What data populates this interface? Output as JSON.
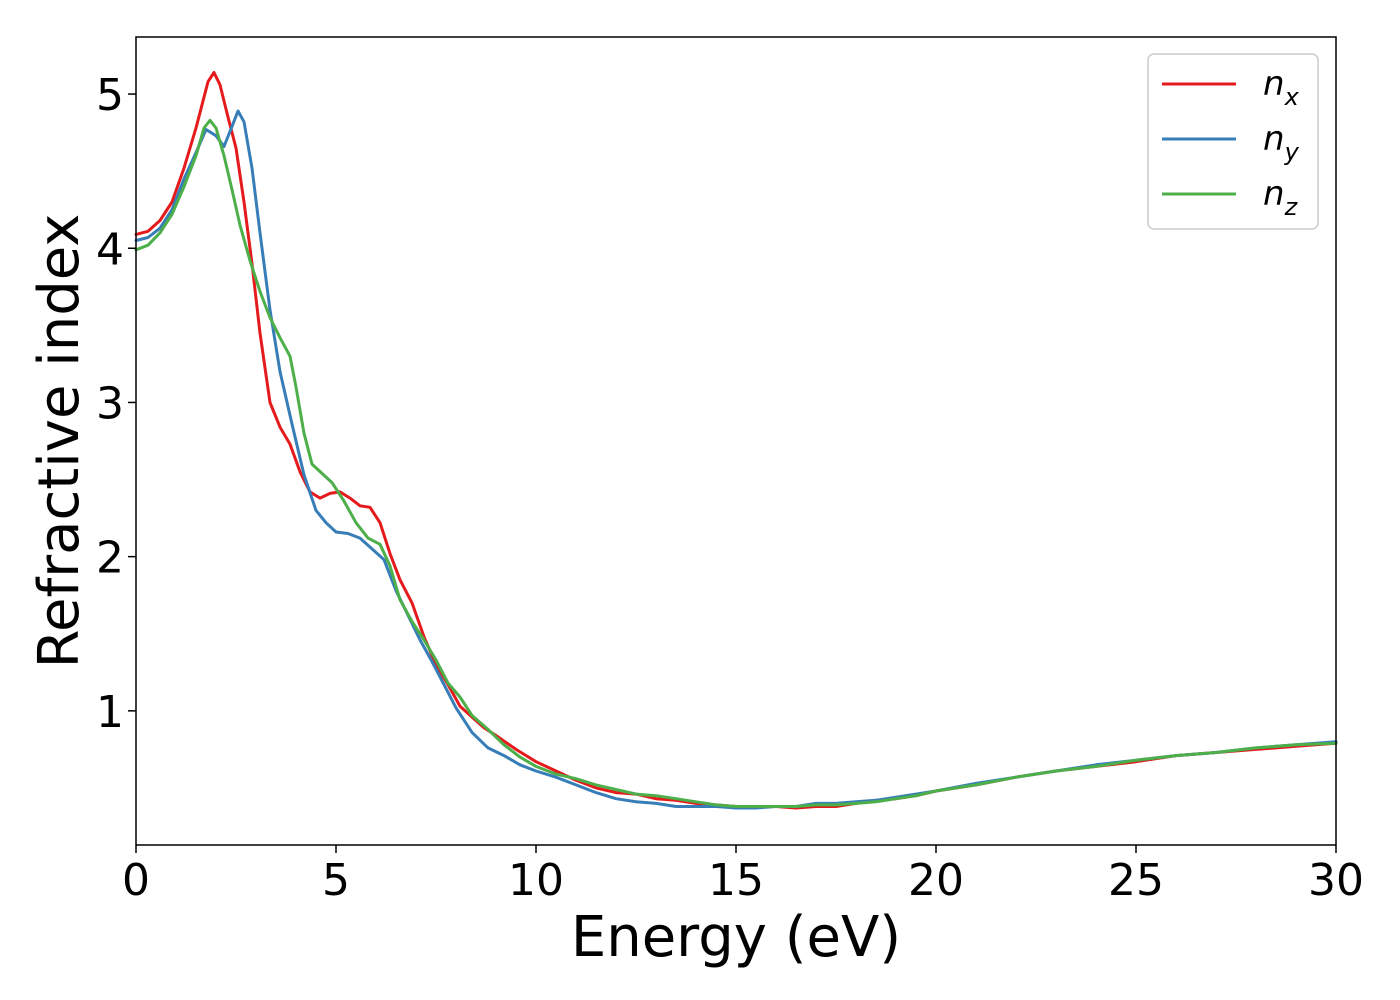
{
  "chart_data": {
    "type": "line",
    "title": "",
    "xlabel": "Energy (eV)",
    "ylabel": "Refractive index",
    "xlim": [
      0,
      30
    ],
    "ylim": [
      0.13,
      5.37
    ],
    "xticks": [
      0,
      5,
      10,
      15,
      20,
      25,
      30
    ],
    "yticks": [
      1,
      2,
      3,
      4,
      5
    ],
    "grid": false,
    "legend_position": "top-right",
    "series": [
      {
        "name": "n",
        "subscript": "x",
        "color": "#e41a1c",
        "points": [
          [
            0,
            4.09
          ],
          [
            0.3,
            4.11
          ],
          [
            0.6,
            4.18
          ],
          [
            0.9,
            4.3
          ],
          [
            1.2,
            4.52
          ],
          [
            1.5,
            4.78
          ],
          [
            1.8,
            5.08
          ],
          [
            1.95,
            5.14
          ],
          [
            2.1,
            5.06
          ],
          [
            2.3,
            4.85
          ],
          [
            2.5,
            4.65
          ],
          [
            2.7,
            4.3
          ],
          [
            2.9,
            3.9
          ],
          [
            3.1,
            3.45
          ],
          [
            3.35,
            3.0
          ],
          [
            3.6,
            2.84
          ],
          [
            3.85,
            2.73
          ],
          [
            4.1,
            2.55
          ],
          [
            4.35,
            2.42
          ],
          [
            4.6,
            2.38
          ],
          [
            4.85,
            2.41
          ],
          [
            5.1,
            2.42
          ],
          [
            5.35,
            2.38
          ],
          [
            5.6,
            2.33
          ],
          [
            5.85,
            2.32
          ],
          [
            6.1,
            2.22
          ],
          [
            6.35,
            2.02
          ],
          [
            6.6,
            1.85
          ],
          [
            6.9,
            1.7
          ],
          [
            7.2,
            1.48
          ],
          [
            7.5,
            1.3
          ],
          [
            7.8,
            1.17
          ],
          [
            8.1,
            1.03
          ],
          [
            8.4,
            0.96
          ],
          [
            8.7,
            0.89
          ],
          [
            9.0,
            0.84
          ],
          [
            9.5,
            0.75
          ],
          [
            10.0,
            0.67
          ],
          [
            10.5,
            0.61
          ],
          [
            11.0,
            0.55
          ],
          [
            11.5,
            0.5
          ],
          [
            12.0,
            0.47
          ],
          [
            12.5,
            0.46
          ],
          [
            13.0,
            0.43
          ],
          [
            13.5,
            0.42
          ],
          [
            14.0,
            0.4
          ],
          [
            14.5,
            0.39
          ],
          [
            15.0,
            0.38
          ],
          [
            15.5,
            0.38
          ],
          [
            16.0,
            0.38
          ],
          [
            16.5,
            0.37
          ],
          [
            17.0,
            0.38
          ],
          [
            17.5,
            0.38
          ],
          [
            18.0,
            0.4
          ],
          [
            18.5,
            0.42
          ],
          [
            19.0,
            0.43
          ],
          [
            19.5,
            0.45
          ],
          [
            20.0,
            0.48
          ],
          [
            21.0,
            0.52
          ],
          [
            22.0,
            0.57
          ],
          [
            23.0,
            0.61
          ],
          [
            24.0,
            0.64
          ],
          [
            25.0,
            0.67
          ],
          [
            26.0,
            0.71
          ],
          [
            27.0,
            0.73
          ],
          [
            28.0,
            0.75
          ],
          [
            29.0,
            0.77
          ],
          [
            30.0,
            0.79
          ]
        ]
      },
      {
        "name": "n",
        "subscript": "y",
        "color": "#377eb8",
        "points": [
          [
            0,
            4.05
          ],
          [
            0.3,
            4.07
          ],
          [
            0.6,
            4.13
          ],
          [
            0.9,
            4.25
          ],
          [
            1.2,
            4.45
          ],
          [
            1.5,
            4.62
          ],
          [
            1.75,
            4.77
          ],
          [
            2.0,
            4.73
          ],
          [
            2.2,
            4.66
          ],
          [
            2.4,
            4.79
          ],
          [
            2.55,
            4.89
          ],
          [
            2.7,
            4.82
          ],
          [
            2.9,
            4.52
          ],
          [
            3.1,
            4.1
          ],
          [
            3.35,
            3.6
          ],
          [
            3.6,
            3.2
          ],
          [
            3.9,
            2.86
          ],
          [
            4.2,
            2.53
          ],
          [
            4.5,
            2.3
          ],
          [
            4.75,
            2.22
          ],
          [
            5.0,
            2.16
          ],
          [
            5.3,
            2.15
          ],
          [
            5.6,
            2.12
          ],
          [
            5.9,
            2.05
          ],
          [
            6.2,
            1.98
          ],
          [
            6.5,
            1.78
          ],
          [
            6.8,
            1.62
          ],
          [
            7.1,
            1.46
          ],
          [
            7.4,
            1.32
          ],
          [
            7.7,
            1.17
          ],
          [
            8.0,
            1.02
          ],
          [
            8.4,
            0.86
          ],
          [
            8.8,
            0.76
          ],
          [
            9.2,
            0.71
          ],
          [
            9.6,
            0.65
          ],
          [
            10.0,
            0.61
          ],
          [
            10.5,
            0.57
          ],
          [
            11.0,
            0.52
          ],
          [
            11.5,
            0.47
          ],
          [
            12.0,
            0.43
          ],
          [
            12.5,
            0.41
          ],
          [
            13.0,
            0.4
          ],
          [
            13.5,
            0.38
          ],
          [
            14.0,
            0.38
          ],
          [
            14.5,
            0.38
          ],
          [
            15.0,
            0.37
          ],
          [
            15.5,
            0.37
          ],
          [
            16.0,
            0.38
          ],
          [
            16.5,
            0.38
          ],
          [
            17.0,
            0.4
          ],
          [
            17.5,
            0.4
          ],
          [
            18.0,
            0.41
          ],
          [
            18.5,
            0.42
          ],
          [
            19.0,
            0.44
          ],
          [
            19.5,
            0.46
          ],
          [
            20.0,
            0.48
          ],
          [
            21.0,
            0.53
          ],
          [
            22.0,
            0.57
          ],
          [
            23.0,
            0.61
          ],
          [
            24.0,
            0.65
          ],
          [
            25.0,
            0.68
          ],
          [
            26.0,
            0.71
          ],
          [
            27.0,
            0.73
          ],
          [
            28.0,
            0.76
          ],
          [
            29.0,
            0.78
          ],
          [
            30.0,
            0.8
          ]
        ]
      },
      {
        "name": "n",
        "subscript": "z",
        "color": "#4daf4a",
        "points": [
          [
            0,
            3.99
          ],
          [
            0.3,
            4.02
          ],
          [
            0.6,
            4.1
          ],
          [
            0.9,
            4.22
          ],
          [
            1.2,
            4.4
          ],
          [
            1.5,
            4.6
          ],
          [
            1.7,
            4.78
          ],
          [
            1.85,
            4.83
          ],
          [
            2.0,
            4.78
          ],
          [
            2.2,
            4.6
          ],
          [
            2.4,
            4.38
          ],
          [
            2.6,
            4.15
          ],
          [
            2.85,
            3.92
          ],
          [
            3.1,
            3.72
          ],
          [
            3.35,
            3.55
          ],
          [
            3.6,
            3.42
          ],
          [
            3.85,
            3.3
          ],
          [
            4.0,
            3.1
          ],
          [
            4.2,
            2.8
          ],
          [
            4.4,
            2.6
          ],
          [
            4.65,
            2.54
          ],
          [
            4.9,
            2.48
          ],
          [
            5.2,
            2.36
          ],
          [
            5.5,
            2.22
          ],
          [
            5.8,
            2.12
          ],
          [
            6.1,
            2.08
          ],
          [
            6.35,
            1.94
          ],
          [
            6.6,
            1.72
          ],
          [
            6.9,
            1.58
          ],
          [
            7.2,
            1.46
          ],
          [
            7.5,
            1.33
          ],
          [
            7.8,
            1.18
          ],
          [
            8.1,
            1.09
          ],
          [
            8.4,
            0.97
          ],
          [
            8.8,
            0.88
          ],
          [
            9.2,
            0.78
          ],
          [
            9.6,
            0.7
          ],
          [
            10.0,
            0.64
          ],
          [
            10.5,
            0.59
          ],
          [
            11.0,
            0.56
          ],
          [
            11.5,
            0.52
          ],
          [
            12.0,
            0.49
          ],
          [
            12.5,
            0.46
          ],
          [
            13.0,
            0.45
          ],
          [
            13.5,
            0.43
          ],
          [
            14.0,
            0.41
          ],
          [
            14.5,
            0.39
          ],
          [
            15.0,
            0.38
          ],
          [
            15.5,
            0.38
          ],
          [
            16.0,
            0.38
          ],
          [
            16.5,
            0.38
          ],
          [
            17.0,
            0.39
          ],
          [
            17.5,
            0.39
          ],
          [
            18.0,
            0.4
          ],
          [
            18.5,
            0.41
          ],
          [
            19.0,
            0.43
          ],
          [
            19.5,
            0.45
          ],
          [
            20.0,
            0.48
          ],
          [
            21.0,
            0.52
          ],
          [
            22.0,
            0.57
          ],
          [
            23.0,
            0.61
          ],
          [
            24.0,
            0.64
          ],
          [
            25.0,
            0.68
          ],
          [
            26.0,
            0.71
          ],
          [
            27.0,
            0.73
          ],
          [
            28.0,
            0.76
          ],
          [
            29.0,
            0.78
          ],
          [
            30.0,
            0.79
          ]
        ]
      }
    ]
  }
}
